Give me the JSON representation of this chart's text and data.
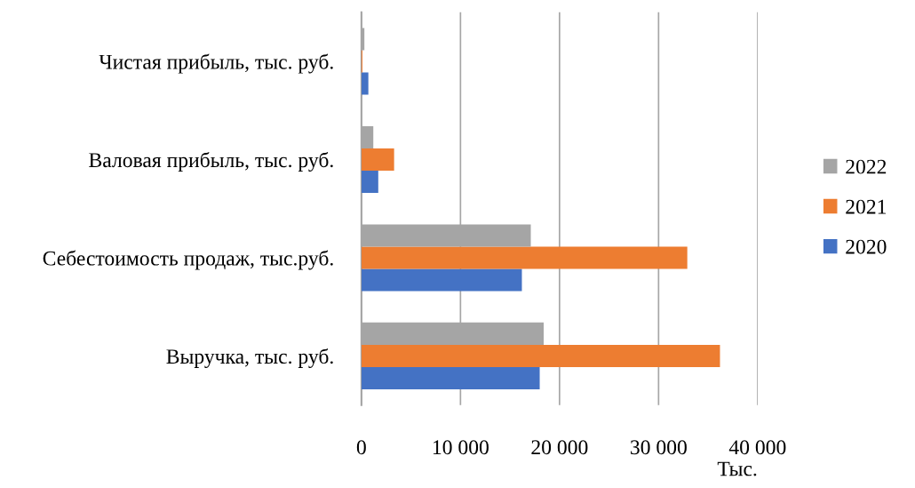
{
  "chart_data": {
    "type": "bar",
    "orientation": "horizontal",
    "xlabel": "Тыс.",
    "categories": [
      "Чистая прибыль, тыс. руб.",
      "Валовая прибыль, тыс. руб.",
      "Себестоимость продаж, тыс.руб.",
      "Выручка, тыс. руб."
    ],
    "series": [
      {
        "name": "2020",
        "color": "#4472c4",
        "values": [
          700,
          1700,
          16200,
          18000
        ]
      },
      {
        "name": "2021",
        "color": "#ed7d31",
        "values": [
          100,
          3300,
          32900,
          36200
        ]
      },
      {
        "name": "2022",
        "color": "#a5a5a5",
        "values": [
          300,
          1200,
          17100,
          18400
        ]
      }
    ],
    "xlim": [
      0,
      40000
    ],
    "xticks": [
      0,
      {
        "value": 10000,
        "label": "10 000"
      },
      {
        "value": 20000,
        "label": "20 000"
      },
      {
        "value": 30000,
        "label": "30 000"
      },
      {
        "value": 40000,
        "label": "40 000"
      }
    ],
    "grid": "x",
    "legend": "right"
  }
}
